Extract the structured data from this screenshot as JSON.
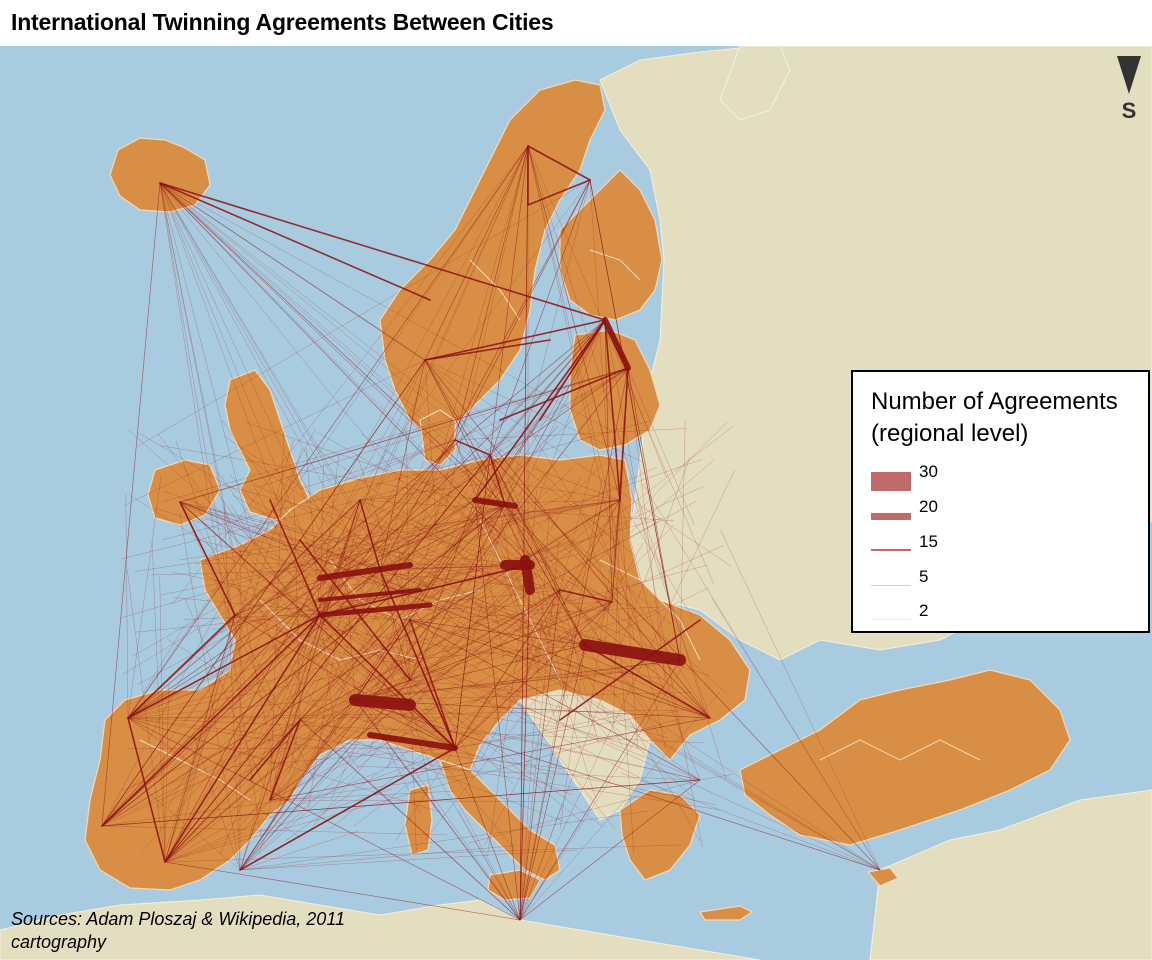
{
  "title": "International Twinning Agreements Between Cities",
  "legend": {
    "title_line1": "Number of Agreements",
    "title_line2": "(regional level)",
    "items": [
      {
        "label": "30",
        "value": 30
      },
      {
        "label": "20",
        "value": 20
      },
      {
        "label": "15",
        "value": 15
      },
      {
        "label": "5",
        "value": 5
      },
      {
        "label": "2",
        "value": 2
      }
    ]
  },
  "north_arrow": {
    "label": "S",
    "icon": "triangle-down-icon"
  },
  "sources": {
    "line1": "Sources: Adam Ploszaj & Wikipedia, 2011",
    "line2": "cartography"
  },
  "colors": {
    "sea": "#a9cbe0",
    "land_eu": "#d88f45",
    "land_other": "#e4dec0",
    "border": "#f2d9b8",
    "link": "#8b1010",
    "legend_swatch": "#c06a6a"
  }
}
